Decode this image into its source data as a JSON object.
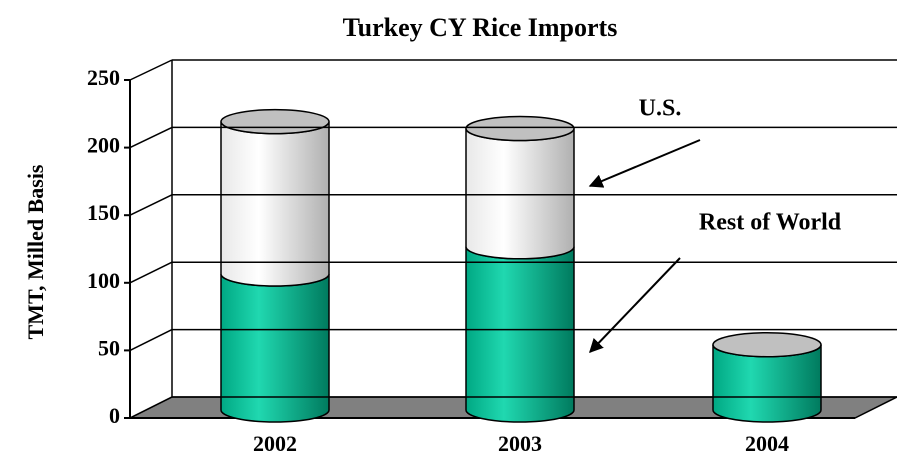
{
  "chart_data": {
    "type": "bar3d_stacked",
    "title": "Turkey CY Rice Imports",
    "ylabel": "TMT, Milled Basis",
    "categories": [
      "2002",
      "2003",
      "2004"
    ],
    "series": [
      {
        "name": "Rest of World",
        "color": "#00c49a",
        "values": [
          100,
          120,
          48
        ]
      },
      {
        "name": "U.S.",
        "color": "#d9d9d9",
        "values": [
          112,
          87,
          0
        ]
      }
    ],
    "ylim": [
      0,
      250
    ],
    "yticks": [
      0,
      50,
      100,
      150,
      200,
      250
    ],
    "grid": true
  }
}
